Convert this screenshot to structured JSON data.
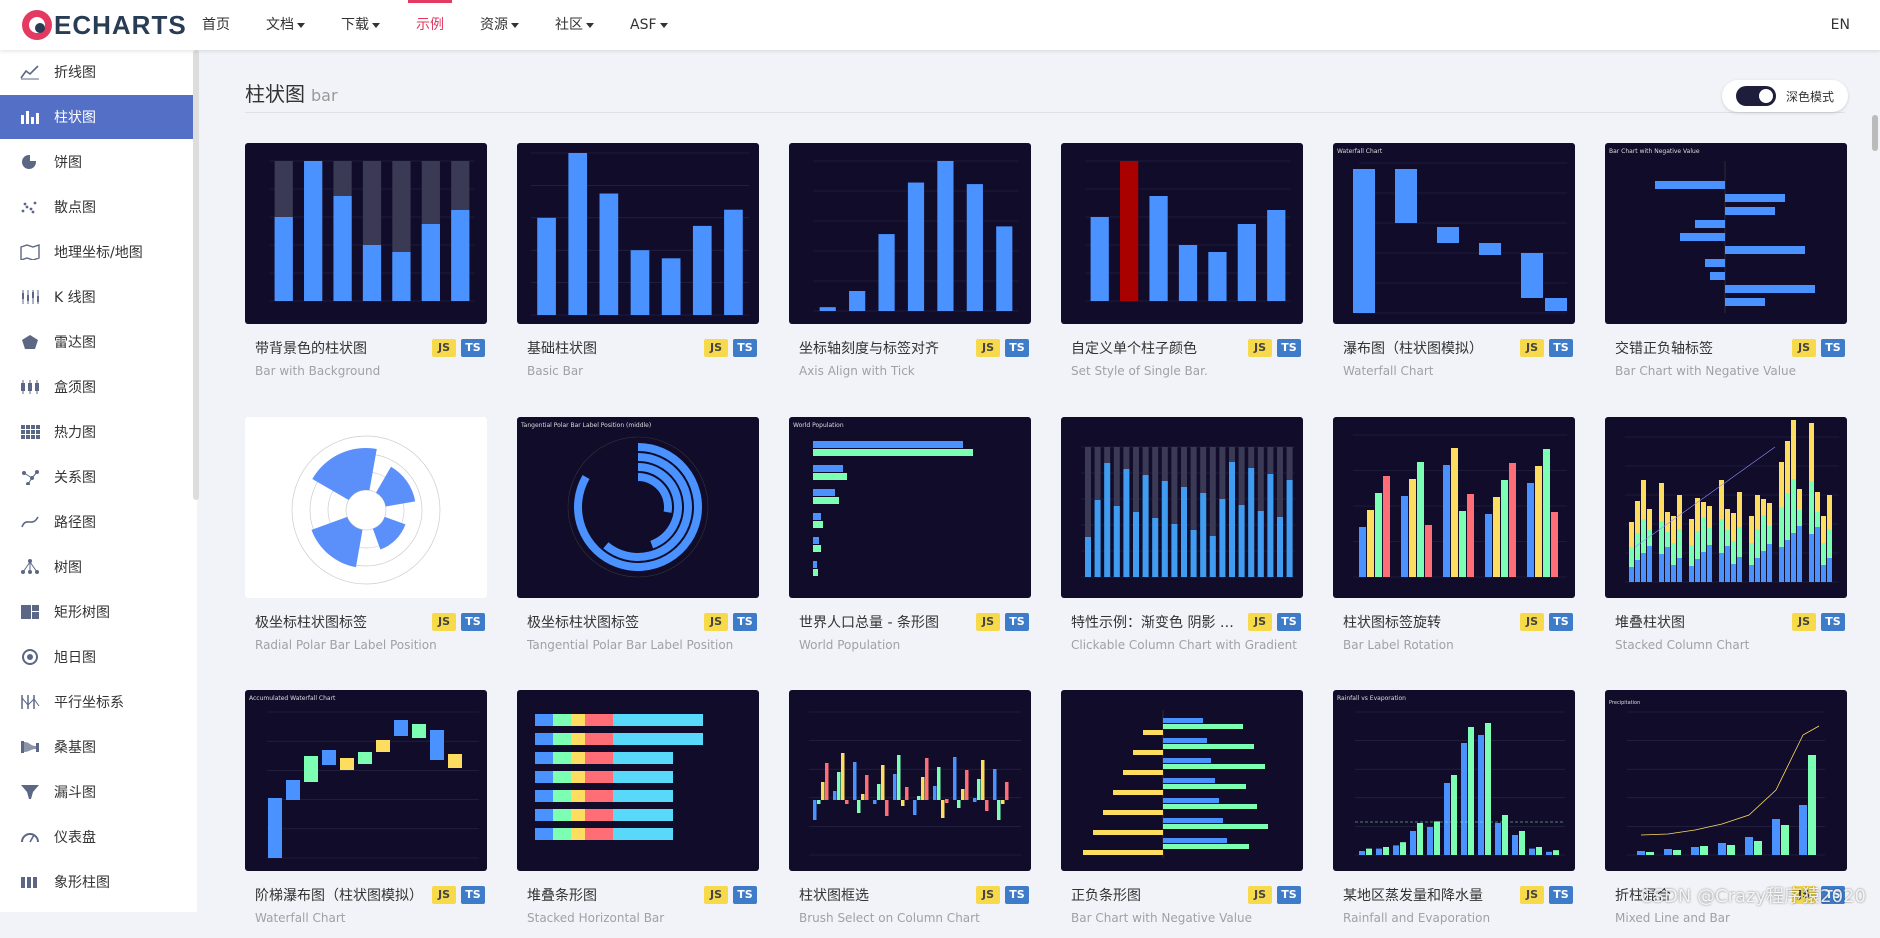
{
  "header": {
    "logo_text": "ECHARTS",
    "nav": [
      {
        "label": "首页",
        "dropdown": false
      },
      {
        "label": "文档",
        "dropdown": true
      },
      {
        "label": "下载",
        "dropdown": true
      },
      {
        "label": "示例",
        "dropdown": false,
        "active": true
      },
      {
        "label": "资源",
        "dropdown": true
      },
      {
        "label": "社区",
        "dropdown": true
      },
      {
        "label": "ASF",
        "dropdown": true
      }
    ],
    "lang": "EN"
  },
  "sidebar": {
    "items": [
      {
        "label": "折线图",
        "icon": "line-chart-icon"
      },
      {
        "label": "柱状图",
        "icon": "bar-chart-icon",
        "active": true
      },
      {
        "label": "饼图",
        "icon": "pie-chart-icon"
      },
      {
        "label": "散点图",
        "icon": "scatter-chart-icon"
      },
      {
        "label": "地理坐标/地图",
        "icon": "map-icon"
      },
      {
        "label": "K 线图",
        "icon": "candlestick-icon"
      },
      {
        "label": "雷达图",
        "icon": "radar-icon"
      },
      {
        "label": "盒须图",
        "icon": "boxplot-icon"
      },
      {
        "label": "热力图",
        "icon": "heatmap-icon"
      },
      {
        "label": "关系图",
        "icon": "graph-icon"
      },
      {
        "label": "路径图",
        "icon": "lines-icon"
      },
      {
        "label": "树图",
        "icon": "tree-icon"
      },
      {
        "label": "矩形树图",
        "icon": "treemap-icon"
      },
      {
        "label": "旭日图",
        "icon": "sunburst-icon"
      },
      {
        "label": "平行坐标系",
        "icon": "parallel-icon"
      },
      {
        "label": "桑基图",
        "icon": "sankey-icon"
      },
      {
        "label": "漏斗图",
        "icon": "funnel-icon"
      },
      {
        "label": "仪表盘",
        "icon": "gauge-icon"
      },
      {
        "label": "象形柱图",
        "icon": "pictorial-bar-icon"
      }
    ]
  },
  "main": {
    "title": "柱状图",
    "subtitle": "bar",
    "dark_mode_label": "深色模式",
    "badge_js": "JS",
    "badge_ts": "TS",
    "cards": [
      {
        "title": "带背景色的柱状图",
        "subtitle": "Bar with Background",
        "thumb": "bar-bg",
        "light": false
      },
      {
        "title": "基础柱状图",
        "subtitle": "Basic Bar",
        "thumb": "bar-basic",
        "light": false
      },
      {
        "title": "坐标轴刻度与标签对齐",
        "subtitle": "Axis Align with Tick",
        "thumb": "bar-align",
        "light": false
      },
      {
        "title": "自定义单个柱子颜色",
        "subtitle": "Set Style of Single Bar.",
        "thumb": "bar-single",
        "light": false
      },
      {
        "title": "瀑布图（柱状图模拟）",
        "subtitle": "Waterfall Chart",
        "thumb": "waterfall",
        "light": false
      },
      {
        "title": "交错正负轴标签",
        "subtitle": "Bar Chart with Negative Value",
        "thumb": "negative",
        "light": false
      },
      {
        "title": "极坐标柱状图标签",
        "subtitle": "Radial Polar Bar Label Position",
        "thumb": "polar-radial",
        "light": true
      },
      {
        "title": "极坐标柱状图标签",
        "subtitle": "Tangential Polar Bar Label Position",
        "thumb": "polar-tangential",
        "light": false
      },
      {
        "title": "世界人口总量 - 条形图",
        "subtitle": "World Population",
        "thumb": "world-pop",
        "light": false
      },
      {
        "title": "特性示例：渐变色 阴影 点击缩放",
        "subtitle": "Clickable Column Chart with Gradient",
        "thumb": "gradient",
        "light": false
      },
      {
        "title": "柱状图标签旋转",
        "subtitle": "Bar Label Rotation",
        "thumb": "label-rotation",
        "light": false
      },
      {
        "title": "堆叠柱状图",
        "subtitle": "Stacked Column Chart",
        "thumb": "stacked-column",
        "light": false
      },
      {
        "title": "阶梯瀑布图（柱状图模拟）",
        "subtitle": "Waterfall Chart",
        "thumb": "step-waterfall",
        "light": false
      },
      {
        "title": "堆叠条形图",
        "subtitle": "Stacked Horizontal Bar",
        "thumb": "stacked-hbar",
        "light": false
      },
      {
        "title": "柱状图框选",
        "subtitle": "Brush Select on Column Chart",
        "thumb": "brush",
        "light": false
      },
      {
        "title": "正负条形图",
        "subtitle": "Bar Chart with Negative Value",
        "thumb": "pos-neg",
        "light": false
      },
      {
        "title": "某地区蒸发量和降水量",
        "subtitle": "Rainfall and Evaporation",
        "thumb": "rainfall",
        "light": false
      },
      {
        "title": "折柱混合",
        "subtitle": "Mixed Line and Bar",
        "thumb": "mixed",
        "light": false
      }
    ]
  },
  "watermark": "CSDN @Crazy程序猿2020",
  "colors": {
    "accent": "#e43961",
    "sidebar_active": "#5470c6",
    "thumb_bg": "#100c2a",
    "bar_blue": "#4992ff",
    "js_badge": "#f6da4b",
    "ts_badge": "#3e7cc9"
  }
}
